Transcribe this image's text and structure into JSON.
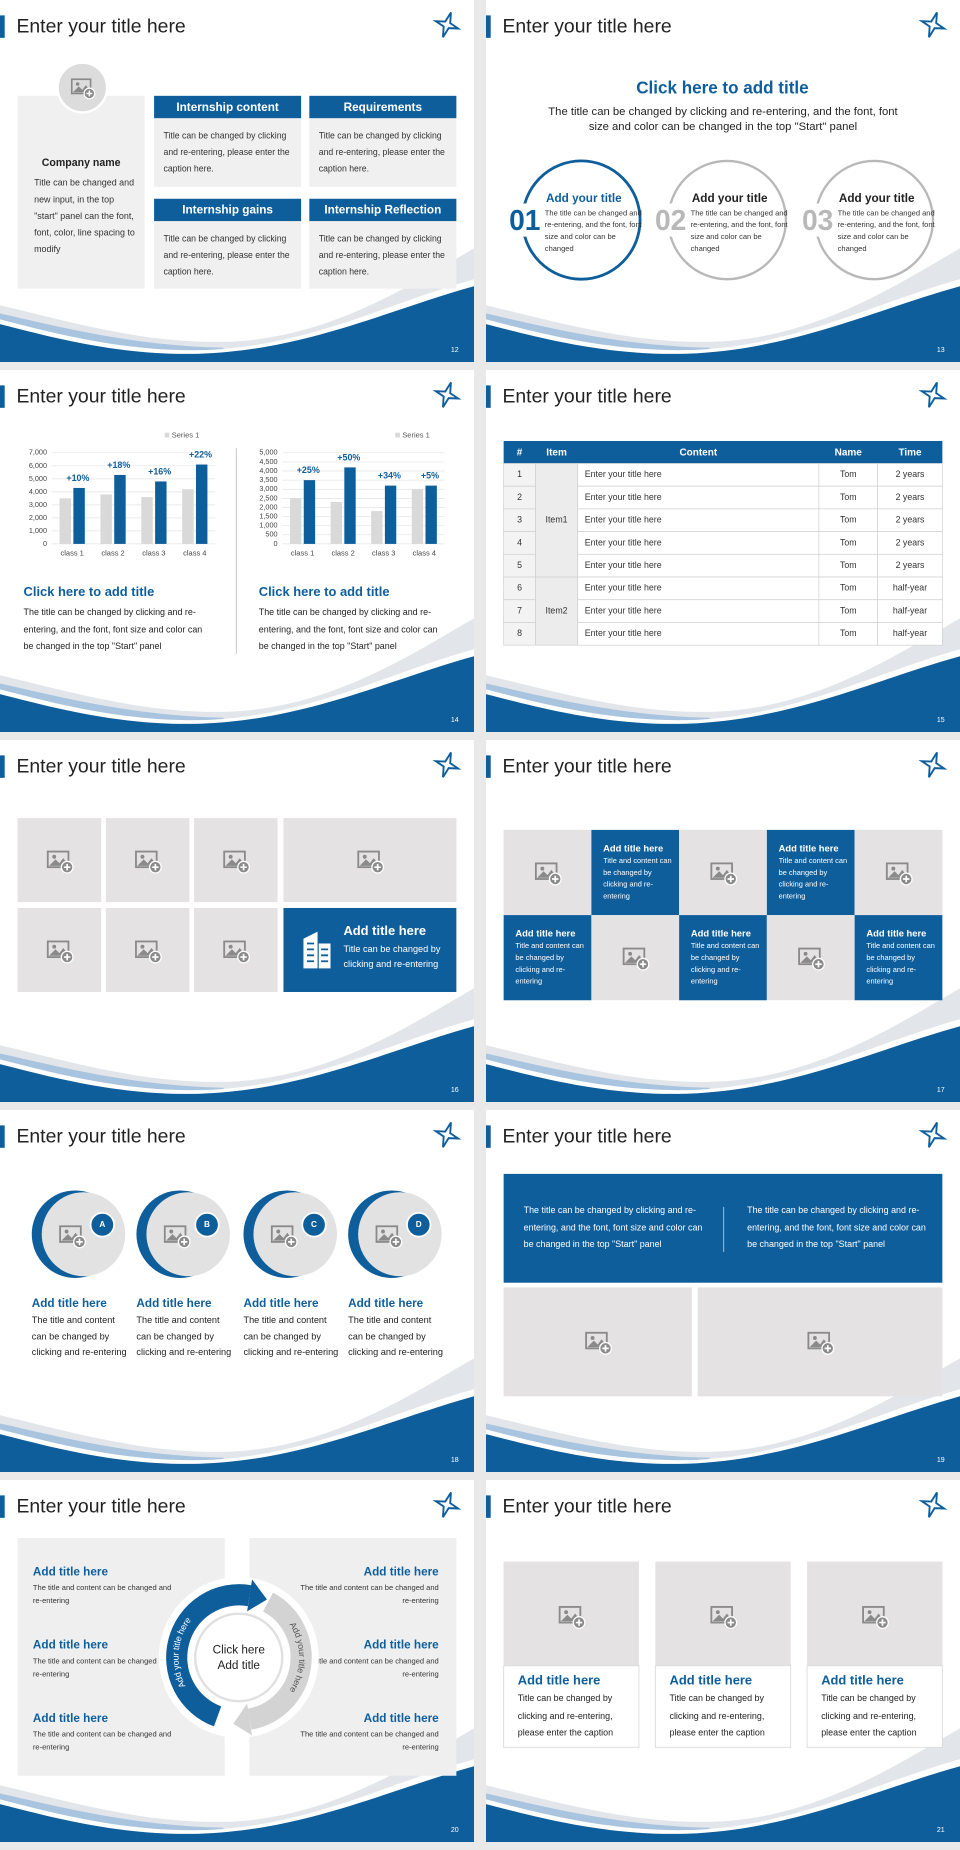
{
  "slides": [
    {
      "title": "Enter your title here",
      "page": 12,
      "company": {
        "name": "Company name",
        "text": "Title can be changed and new input, in the top \"start\" panel can the font, font, color, line spacing to modify"
      },
      "boxes": [
        {
          "heading": "Internship content",
          "text": "Title can be changed by clicking and re-entering, please enter the caption here."
        },
        {
          "heading": "Requirements",
          "text": "Title can be changed by clicking and re-entering, please enter the caption here."
        },
        {
          "heading": "Internship gains",
          "text": "Title can be changed by clicking and re-entering, please enter the caption here."
        },
        {
          "heading": "Internship Reflection",
          "text": "Title can be changed by clicking and re-entering, please enter the caption here."
        }
      ]
    },
    {
      "title": "Enter your title here",
      "page": 13,
      "heading": "Click here to add title",
      "subtitle": "The title can be changed by clicking and re-entering, and the font, font size and color can be changed in the top \"Start\" panel",
      "steps": [
        {
          "number": "01",
          "title": "Add your title",
          "text": "The title can be changed and re-entering, and the font, font size and color can be changed"
        },
        {
          "number": "02",
          "title": "Add your title",
          "text": "The title can be changed and re-entering, and the font, font size and color can be changed"
        },
        {
          "number": "03",
          "title": "Add your title",
          "text": "The title can be changed and re-entering, and the font, font size and color can be changed"
        }
      ]
    },
    {
      "title": "Enter your title here",
      "page": 14,
      "charts": [
        {
          "type": "bar",
          "categories": [
            "class 1",
            "class 2",
            "class 3",
            "class 4"
          ],
          "series": [
            {
              "name": "Series 1",
              "color": "#d9d9d9",
              "values": [
                3500,
                3800,
                3600,
                4200
              ]
            },
            {
              "color": "#0f5e9c",
              "values": [
                4300,
                5300,
                4800,
                6100
              ]
            }
          ],
          "annotations": [
            "+10%",
            "+18%",
            "+16%",
            "+22%"
          ],
          "ylim": [
            0,
            7000
          ],
          "yticks": [
            0,
            {
              "value": 1000,
              "label": "1,000"
            },
            {
              "value": 2000,
              "label": "2,000"
            },
            {
              "value": 3000,
              "label": "3,000"
            },
            {
              "value": 4000,
              "label": "4,000"
            },
            {
              "value": 5000,
              "label": "5,000"
            },
            {
              "value": 6000,
              "label": "6,000"
            },
            {
              "value": 7000,
              "label": "7,000"
            }
          ],
          "grid": true,
          "heading": "Click here to add title",
          "text": "The title can be changed by clicking and re-entering, and the font, font size and color can be changed in the top \"Start\" panel"
        },
        {
          "type": "bar",
          "categories": [
            "class 1",
            "class 2",
            "class 3",
            "class 4"
          ],
          "series": [
            {
              "name": "Series 1",
              "color": "#d9d9d9",
              "values": [
                2500,
                2300,
                1800,
                3000
              ]
            },
            {
              "color": "#0f5e9c",
              "values": [
                3500,
                4200,
                3200,
                3200
              ]
            }
          ],
          "annotations": [
            "+25%",
            "+50%",
            "+34%",
            "+5%"
          ],
          "ylim": [
            0,
            5000
          ],
          "yticks": [
            0,
            500,
            {
              "value": 1000,
              "label": "1,000"
            },
            {
              "value": 1500,
              "label": "1,500"
            },
            {
              "value": 2000,
              "label": "2,000"
            },
            {
              "value": 2500,
              "label": "2,500"
            },
            {
              "value": 3000,
              "label": "3,000"
            },
            {
              "value": 3500,
              "label": "3,500"
            },
            {
              "value": 4000,
              "label": "4,000"
            },
            {
              "value": 4500,
              "label": "4,500"
            },
            {
              "value": 5000,
              "label": "5,000"
            }
          ],
          "grid": true,
          "heading": "Click here to add title",
          "text": "The title can be changed by clicking and re-entering, and the font, font size and color can be changed in the top \"Start\" panel"
        }
      ]
    },
    {
      "title": "Enter your title here",
      "page": 15,
      "table": {
        "header": [
          "#",
          "Item",
          "Content",
          "Name",
          "Time"
        ],
        "groups": [
          {
            "item": "Item1",
            "rows": [
              [
                1,
                "Enter your title here",
                "Tom",
                "2 years"
              ],
              [
                2,
                "Enter your title here",
                "Tom",
                "2 years"
              ],
              [
                3,
                "Enter your title here",
                "Tom",
                "2 years"
              ],
              [
                4,
                "Enter your title here",
                "Tom",
                "2 years"
              ],
              [
                5,
                "Enter your title here",
                "Tom",
                "2 years"
              ]
            ]
          },
          {
            "item": "Item2",
            "rows": [
              [
                6,
                "Enter your title here",
                "Tom",
                "half-year"
              ],
              [
                7,
                "Enter your title here",
                "Tom",
                "half-year"
              ],
              [
                8,
                "Enter your title here",
                "Tom",
                "half-year"
              ]
            ]
          }
        ]
      }
    },
    {
      "title": "Enter your title here",
      "page": 16,
      "feature": {
        "title": "Add title here",
        "text": "Title can be changed by clicking and re-entering"
      }
    },
    {
      "title": "Enter your title here",
      "page": 17,
      "cards": [
        {
          "title": "Add title here",
          "text": "Title and content can be changed by clicking and re-entering"
        },
        {
          "title": "Add title here",
          "text": "Title and content can be changed by clicking and re-entering"
        },
        {
          "title": "Add title here",
          "text": "Title and content can be changed by clicking and re-entering"
        },
        {
          "title": "Add title here",
          "text": "Title and content can be changed by clicking and re-entering"
        },
        {
          "title": "Add title here",
          "text": "Title and content can be changed by clicking and re-entering"
        }
      ]
    },
    {
      "title": "Enter your title here",
      "page": 18,
      "items": [
        {
          "letter": "A",
          "title": "Add title here",
          "text": "The title and content can be changed by clicking and re-entering"
        },
        {
          "letter": "B",
          "title": "Add title here",
          "text": "The title and content can be changed by clicking and re-entering"
        },
        {
          "letter": "C",
          "title": "Add title here",
          "text": "The title and content can be changed by clicking and re-entering"
        },
        {
          "letter": "D",
          "title": "Add title here",
          "text": "The title and content can be changed by clicking and re-entering"
        }
      ]
    },
    {
      "title": "Enter your title here",
      "page": 19,
      "paragraphs": [
        "The title can be changed by clicking and re-entering, and the font, font size and color can be changed in the top \"Start\" panel",
        "The title can be changed by clicking and re-entering, and the font, font size and color can be changed in the top \"Start\" panel"
      ]
    },
    {
      "title": "Enter your title here",
      "page": 20,
      "center": [
        "Click here",
        "Add title"
      ],
      "arcs": [
        "Add your title here",
        "Add your title here"
      ],
      "items": [
        {
          "title": "Add title here",
          "text": "The title and content can be changed and re-entering"
        },
        {
          "title": "Add title here",
          "text": "The title and content can be changed and re-entering"
        },
        {
          "title": "Add title here",
          "text": "The title and content can be changed and re-entering"
        },
        {
          "title": "Add title here",
          "text": "The title and content can be changed and re-entering"
        },
        {
          "title": "Add title here",
          "text": "The title and content can be changed and re-entering"
        },
        {
          "title": "Add title here",
          "text": "The title and content can be changed and re-entering"
        }
      ]
    },
    {
      "title": "Enter your title here",
      "page": 21,
      "cards": [
        {
          "title": "Add title here",
          "text": "Title can be changed by clicking and re-entering, please enter the caption"
        },
        {
          "title": "Add title here",
          "text": "Title can be changed by clicking and re-entering, please enter the caption"
        },
        {
          "title": "Add title here",
          "text": "Title can be changed by clicking and re-entering, please enter the caption"
        }
      ]
    }
  ]
}
